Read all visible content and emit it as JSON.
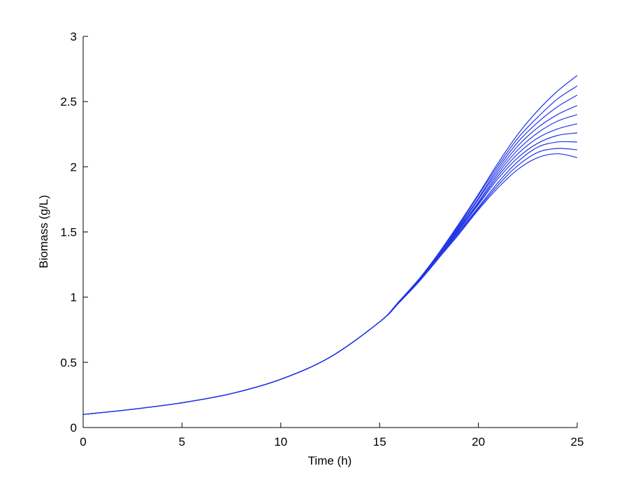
{
  "chart_data": {
    "type": "line",
    "title": "",
    "xlabel": "Time (h)",
    "ylabel": "Biomass (g/L)",
    "xlim": [
      0,
      25
    ],
    "ylim": [
      0,
      3
    ],
    "xticks": [
      0,
      5,
      10,
      15,
      20,
      25
    ],
    "yticks": [
      0,
      0.5,
      1,
      1.5,
      2,
      2.5,
      3
    ],
    "xtick_labels": [
      "0",
      "5",
      "10",
      "15",
      "20",
      "25"
    ],
    "ytick_labels": [
      "0",
      "0.5",
      "1",
      "1.5",
      "2",
      "2.5",
      "3"
    ],
    "grid": false,
    "legend": "none",
    "line_color": "#2035e6",
    "x": [
      0,
      2.5,
      5,
      7.5,
      10,
      12.5,
      15,
      16,
      17,
      18,
      19,
      20,
      21,
      22,
      23,
      24,
      25
    ],
    "series": [
      {
        "values": [
          0.1,
          0.14,
          0.19,
          0.26,
          0.37,
          0.54,
          0.81,
          0.96,
          1.12,
          1.3,
          1.48,
          1.67,
          1.84,
          1.98,
          2.07,
          2.1,
          2.07
        ]
      },
      {
        "values": [
          0.1,
          0.14,
          0.19,
          0.26,
          0.37,
          0.54,
          0.81,
          0.96,
          1.12,
          1.3,
          1.49,
          1.68,
          1.86,
          2.01,
          2.11,
          2.14,
          2.13
        ]
      },
      {
        "values": [
          0.1,
          0.14,
          0.19,
          0.26,
          0.37,
          0.54,
          0.81,
          0.96,
          1.13,
          1.31,
          1.5,
          1.69,
          1.88,
          2.04,
          2.15,
          2.19,
          2.19
        ]
      },
      {
        "values": [
          0.1,
          0.14,
          0.19,
          0.26,
          0.37,
          0.54,
          0.81,
          0.96,
          1.13,
          1.31,
          1.51,
          1.71,
          1.91,
          2.07,
          2.18,
          2.24,
          2.26
        ]
      },
      {
        "values": [
          0.1,
          0.14,
          0.19,
          0.26,
          0.37,
          0.54,
          0.81,
          0.96,
          1.13,
          1.32,
          1.52,
          1.72,
          1.93,
          2.1,
          2.22,
          2.29,
          2.33
        ]
      },
      {
        "values": [
          0.1,
          0.14,
          0.19,
          0.26,
          0.37,
          0.54,
          0.81,
          0.96,
          1.13,
          1.32,
          1.52,
          1.73,
          1.95,
          2.13,
          2.26,
          2.35,
          2.4
        ]
      },
      {
        "values": [
          0.1,
          0.14,
          0.19,
          0.26,
          0.37,
          0.54,
          0.81,
          0.96,
          1.13,
          1.32,
          1.53,
          1.75,
          1.97,
          2.16,
          2.3,
          2.4,
          2.47
        ]
      },
      {
        "values": [
          0.1,
          0.14,
          0.19,
          0.26,
          0.37,
          0.54,
          0.81,
          0.97,
          1.14,
          1.33,
          1.54,
          1.76,
          1.99,
          2.19,
          2.34,
          2.46,
          2.55
        ]
      },
      {
        "values": [
          0.1,
          0.14,
          0.19,
          0.26,
          0.37,
          0.54,
          0.81,
          0.97,
          1.14,
          1.33,
          1.55,
          1.78,
          2.01,
          2.22,
          2.38,
          2.52,
          2.62
        ]
      },
      {
        "values": [
          0.1,
          0.14,
          0.19,
          0.26,
          0.37,
          0.54,
          0.81,
          0.97,
          1.14,
          1.34,
          1.56,
          1.79,
          2.03,
          2.25,
          2.43,
          2.58,
          2.7
        ]
      }
    ]
  }
}
